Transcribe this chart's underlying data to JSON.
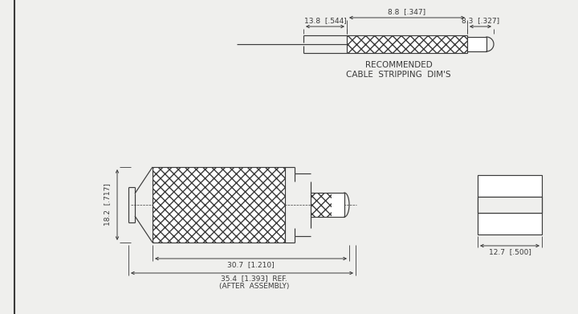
{
  "bg_color": "#efefed",
  "line_color": "#3a3a3a",
  "cable_label1": "RECOMMENDED",
  "cable_label2": "CABLE  STRIPPING  DIM'S",
  "dim_13_8": "13.8  [.544]",
  "dim_8_8": "8.8  [.347]",
  "dim_8_3": "8.3  [.327]",
  "dim_18_2": "18.2  [.717]",
  "dim_30_7": "30.7  [1.210]",
  "dim_35_4": "35.4  [1.393]  REF.",
  "dim_after": "(AFTER  ASSEMBLY)",
  "dim_12_7": "12.7  [.500]",
  "font_size_dim": 6.5,
  "font_size_label": 7.5
}
